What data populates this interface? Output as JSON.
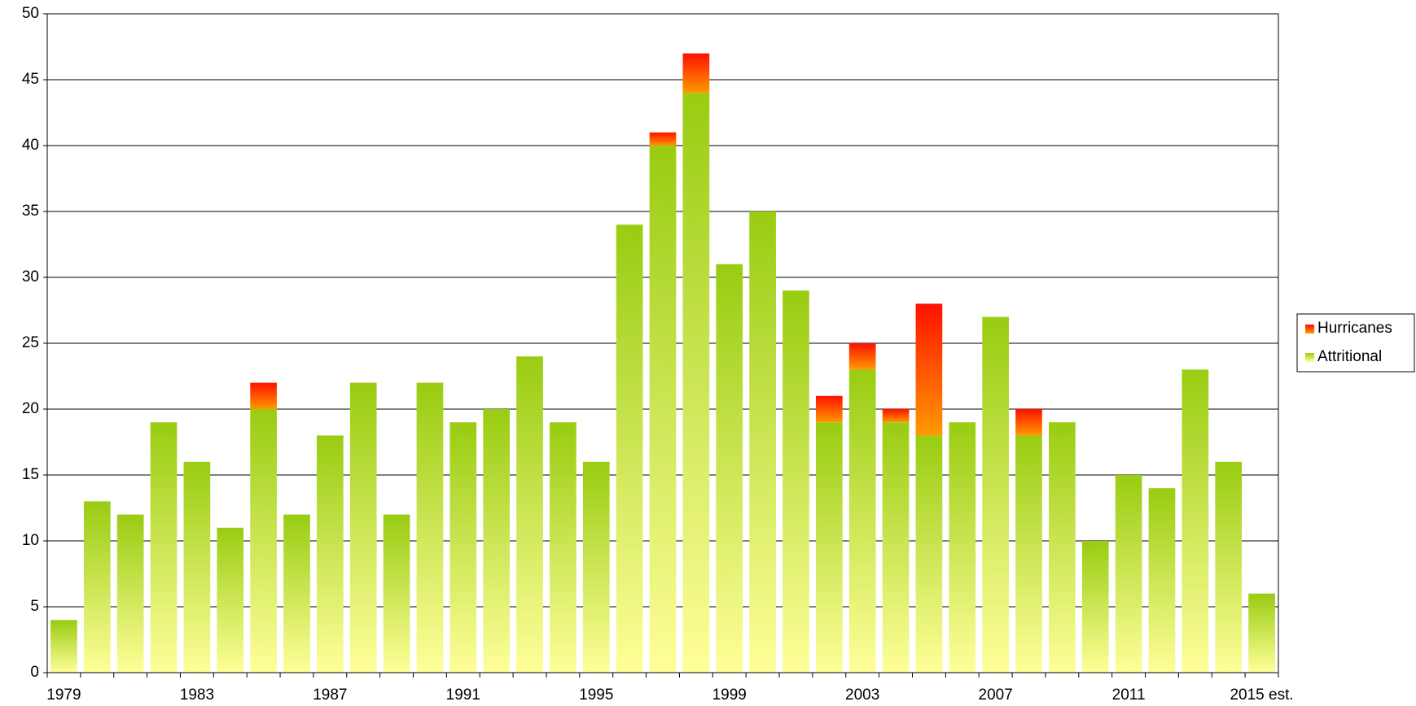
{
  "chart_data": {
    "type": "bar",
    "stacked": true,
    "categories": [
      "1979",
      null,
      null,
      null,
      "1983",
      null,
      null,
      null,
      "1987",
      null,
      null,
      null,
      "1991",
      null,
      null,
      null,
      "1995",
      null,
      null,
      null,
      "1999",
      null,
      null,
      null,
      "2003",
      null,
      null,
      null,
      "2007",
      null,
      null,
      null,
      "2011",
      null,
      null,
      null,
      "2015 est."
    ],
    "series": [
      {
        "name": "Attritional",
        "color": "#99cc11",
        "color2": "#ffff99",
        "values": [
          4,
          13,
          12,
          19,
          16,
          11,
          20,
          12,
          18,
          22,
          12,
          22,
          19,
          20,
          24,
          19,
          16,
          34,
          40,
          44,
          31,
          35,
          29,
          19,
          23,
          19,
          18,
          19,
          27,
          18,
          19,
          10,
          15,
          14,
          23,
          16,
          6
        ]
      },
      {
        "name": "Hurricanes",
        "color": "#ff1100",
        "color2": "#ff9900",
        "values": [
          0,
          0,
          0,
          0,
          0,
          0,
          2,
          0,
          0,
          0,
          0,
          0,
          0,
          0,
          0,
          0,
          0,
          0,
          1,
          3,
          0,
          0,
          0,
          2,
          2,
          1,
          10,
          0,
          0,
          2,
          0,
          0,
          0,
          0,
          0,
          0,
          0
        ]
      }
    ],
    "ylim": [
      0,
      50
    ],
    "yticks": [
      0,
      5,
      10,
      15,
      20,
      25,
      30,
      35,
      40,
      45,
      50
    ],
    "grid": true,
    "legend": "right"
  }
}
